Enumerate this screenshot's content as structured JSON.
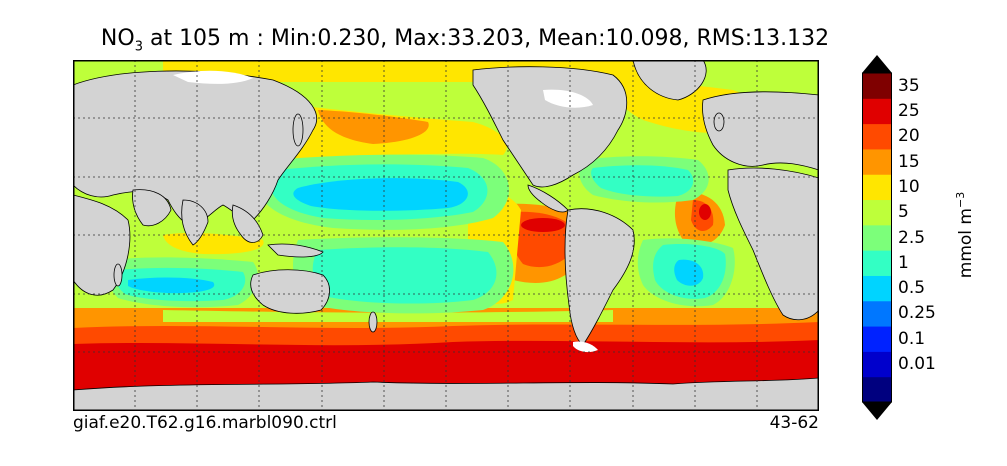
{
  "title": {
    "species": "NO",
    "subscript": "3",
    "rest": " at 105 m : Min:0.230, Max:33.203, Mean:10.098, RMS:13.132"
  },
  "footer": {
    "case_name": "giaf.e20.T62.g16.marbl090.ctrl",
    "years": "43-62"
  },
  "colorbar": {
    "unit_main": "mmol m",
    "unit_exponent": "−3",
    "levels": [
      {
        "label": "",
        "color": "#00007f"
      },
      {
        "label": "0.01",
        "color": "#0000cc"
      },
      {
        "label": "0.1",
        "color": "#0022ff"
      },
      {
        "label": "0.25",
        "color": "#0077ff"
      },
      {
        "label": "0.5",
        "color": "#00d4ff"
      },
      {
        "label": "1",
        "color": "#33ffc4"
      },
      {
        "label": "2.5",
        "color": "#7cff7a"
      },
      {
        "label": "5",
        "color": "#beff3a"
      },
      {
        "label": "10",
        "color": "#ffe600"
      },
      {
        "label": "15",
        "color": "#ff9500"
      },
      {
        "label": "20",
        "color": "#ff4a00"
      },
      {
        "label": "25",
        "color": "#e00000"
      },
      {
        "label": "35",
        "color": "#7f0000"
      }
    ]
  },
  "map_colors": {
    "land": "#d3d3d3",
    "sea_ice": "#ffffff",
    "grid_line": "#333333",
    "coastline": "#000000"
  }
}
